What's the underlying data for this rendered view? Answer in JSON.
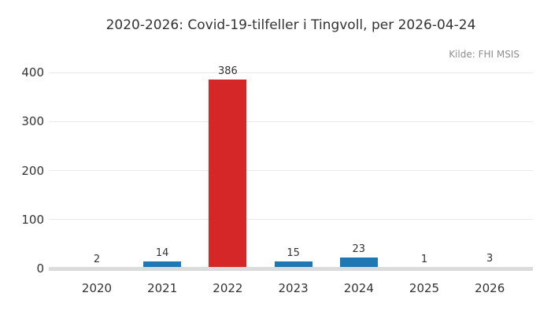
{
  "chart_data": {
    "type": "bar",
    "title": "2020-2026: Covid-19-tilfeller i Tingvoll, per 2026-04-24",
    "source": "Kilde: FHI MSIS",
    "categories": [
      "2020",
      "2021",
      "2022",
      "2023",
      "2024",
      "2025",
      "2026"
    ],
    "values": [
      2,
      14,
      386,
      15,
      23,
      1,
      3
    ],
    "bar_colors": [
      "#1f77b4",
      "#1f77b4",
      "#d62728",
      "#1f77b4",
      "#1f77b4",
      "#1f77b4",
      "#1f77b4"
    ],
    "highlight_category": "2022",
    "value_labels": [
      "2",
      "14",
      "386",
      "15",
      "23",
      "1",
      "3"
    ],
    "xlabel": "",
    "ylabel": "",
    "ylim": [
      0,
      400
    ],
    "yticks": [
      0,
      100,
      200,
      300,
      400
    ],
    "grid": true,
    "legend_position": "none",
    "colors": {
      "default_bar": "#1f77b4",
      "highlight_bar": "#d62728",
      "gridline": "#e9e9e9",
      "baseline": "#dcdcdc",
      "title_text": "#333333",
      "tick_text": "#333333",
      "source_text": "#8e8e8e",
      "background": "#ffffff"
    }
  }
}
